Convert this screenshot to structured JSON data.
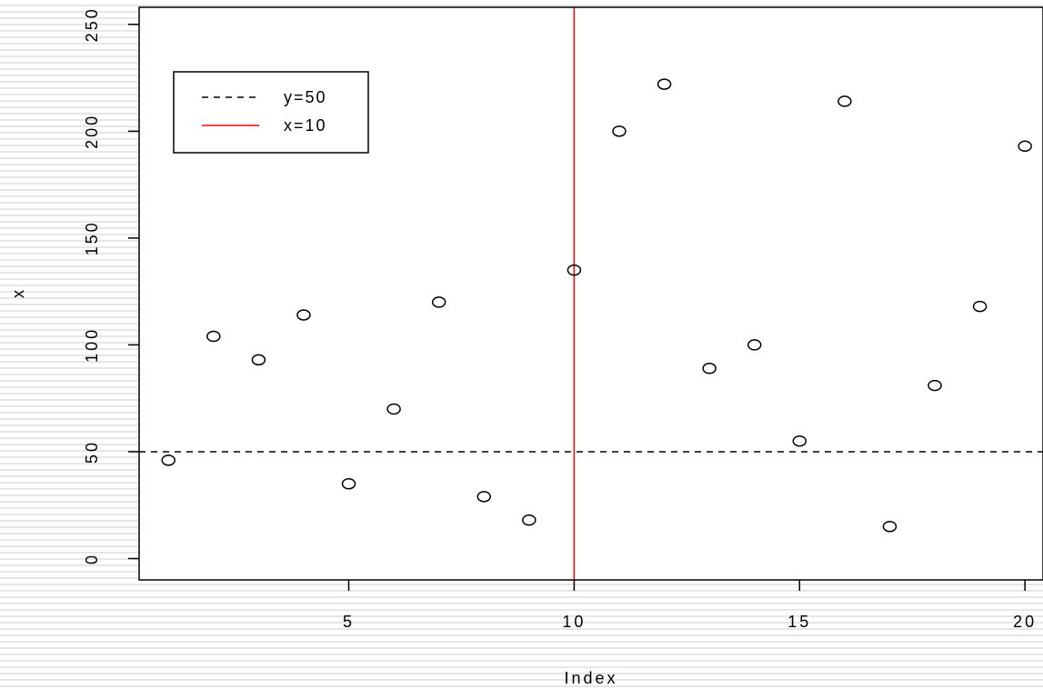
{
  "chart_data": {
    "type": "scatter",
    "xlabel": "Index",
    "ylabel": "x",
    "xlim": [
      0.35,
      20.4
    ],
    "ylim": [
      -10,
      258
    ],
    "x_ticks": [
      5,
      10,
      15,
      20
    ],
    "y_ticks": [
      0,
      50,
      100,
      150,
      200,
      250
    ],
    "grid": false,
    "legend_position": "top-left",
    "series": [
      {
        "x": [
          1,
          2,
          3,
          4,
          5,
          6,
          7,
          8,
          9,
          10,
          11,
          12,
          13,
          14,
          15,
          16,
          17,
          18,
          19,
          20
        ],
        "values": [
          46,
          104,
          93,
          114,
          35,
          70,
          120,
          29,
          18,
          135,
          200,
          222,
          89,
          100,
          55,
          214,
          15,
          81,
          118,
          193
        ]
      }
    ],
    "reference_lines": [
      {
        "orientation": "horizontal",
        "value": 50,
        "style": "dashed",
        "color": "#000000",
        "label": "y=50"
      },
      {
        "orientation": "vertical",
        "value": 10,
        "style": "solid",
        "color": "#ff0000",
        "label": "x=10"
      }
    ],
    "legend": [
      {
        "label": "y=50",
        "style": "dashed",
        "color": "#000000"
      },
      {
        "label": "x=10",
        "style": "solid",
        "color": "#ff0000"
      }
    ]
  }
}
